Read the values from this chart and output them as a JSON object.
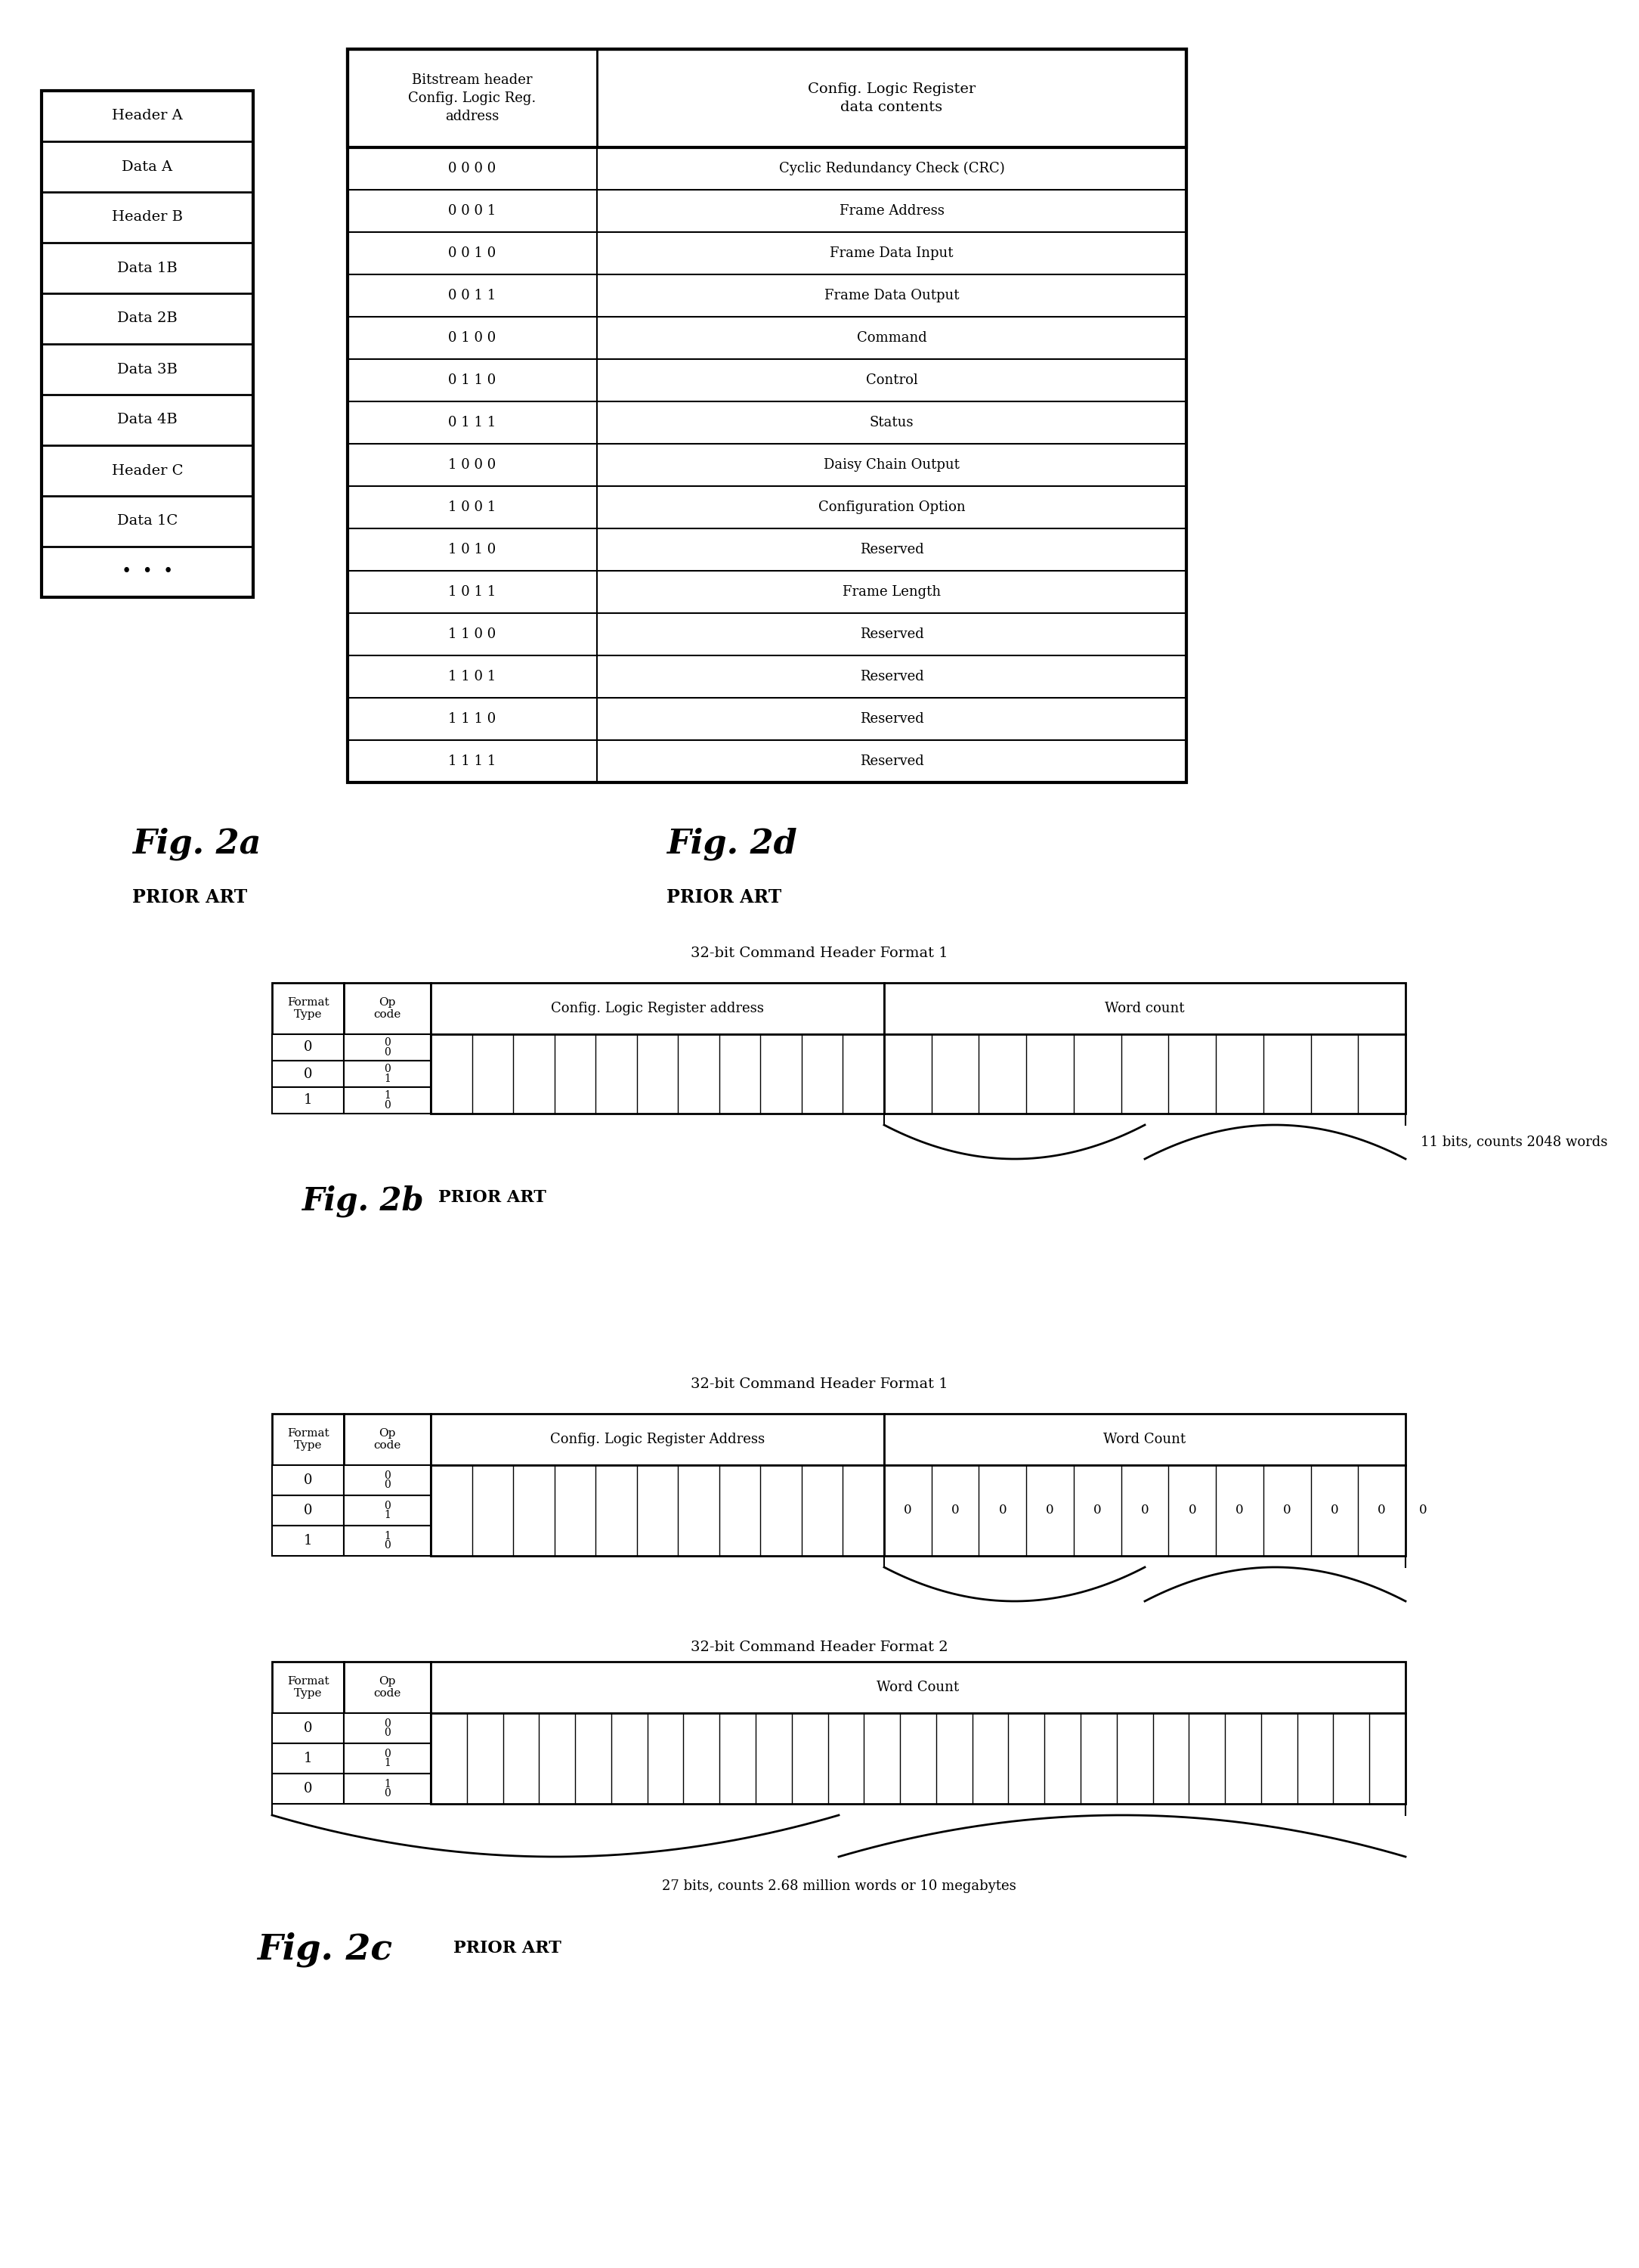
{
  "fig2a_rows": [
    "Header A",
    "Data A",
    "Header B",
    "Data 1B",
    "Data 2B",
    "Data 3B",
    "Data 4B",
    "Header C",
    "Data 1C",
    "..."
  ],
  "fig2d_col1_header": "Bitstream header\nConfig. Logic Reg.\naddress",
  "fig2d_col2_header": "Config. Logic Register\ndata contents",
  "fig2d_rows": [
    [
      "0 0 0 0",
      "Cyclic Redundancy Check (CRC)"
    ],
    [
      "0 0 0 1",
      "Frame Address"
    ],
    [
      "0 0 1 0",
      "Frame Data Input"
    ],
    [
      "0 0 1 1",
      "Frame Data Output"
    ],
    [
      "0 1 0 0",
      "Command"
    ],
    [
      "0 1 1 0",
      "Control"
    ],
    [
      "0 1 1 1",
      "Status"
    ],
    [
      "1 0 0 0",
      "Daisy Chain Output"
    ],
    [
      "1 0 0 1",
      "Configuration Option"
    ],
    [
      "1 0 1 0",
      "Reserved"
    ],
    [
      "1 0 1 1",
      "Frame Length"
    ],
    [
      "1 1 0 0",
      "Reserved"
    ],
    [
      "1 1 0 1",
      "Reserved"
    ],
    [
      "1 1 1 0",
      "Reserved"
    ],
    [
      "1 1 1 1",
      "Reserved"
    ]
  ],
  "fig2a_label": "Fig. 2a",
  "fig2a_prior": "PRIOR ART",
  "fig2d_label": "Fig. 2d",
  "fig2d_prior": "PRIOR ART",
  "fig2b_title": "32-bit Command Header Format 1",
  "fig2b_label": "Fig. 2b",
  "fig2b_prior": "PRIOR ART",
  "fig2b_note": "11 bits, counts 2048 words",
  "fig2b_fmt_vals": [
    "0",
    "0",
    "1"
  ],
  "fig2b_op_vals": [
    "0|0",
    "0|1",
    "1|0"
  ],
  "fig2b_addr_ncells": 11,
  "fig2b_wc_ncells": 11,
  "fig2c_title1": "32-bit Command Header Format 1",
  "fig2c_title2": "32-bit Command Header Format 2",
  "fig2c_label": "Fig. 2c",
  "fig2c_prior": "PRIOR ART",
  "fig2c_note": "27 bits, counts 2.68 million words or 10 megabytes",
  "fig2c_fmt1_vals": [
    "0",
    "0",
    "1"
  ],
  "fig2c_op1_vals": [
    "0|0",
    "0|1",
    "1|0"
  ],
  "fig2c_addr_ncells": 11,
  "fig2c_wc_vals": [
    "0",
    "0",
    "0",
    "0",
    "0",
    "0",
    "0",
    "0",
    "0",
    "0",
    "0"
  ],
  "fig2c_fmt2_vals": [
    "0",
    "1",
    "0"
  ],
  "fig2c_op2_vals": [
    "0|0",
    "0|1",
    "1|0"
  ],
  "fig2c_wc2_ncells": 27,
  "background": "#ffffff",
  "line_color": "#000000",
  "text_color": "#000000"
}
